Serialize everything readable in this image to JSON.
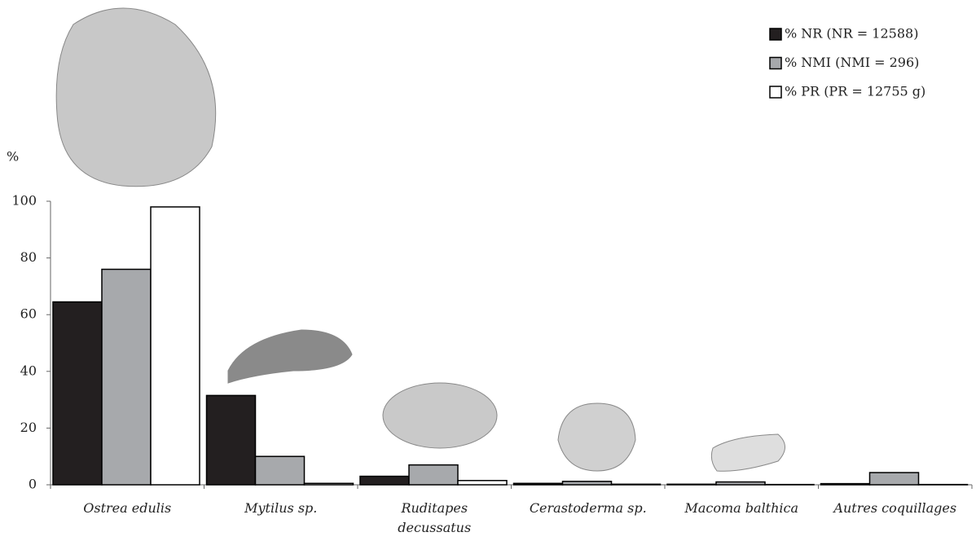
{
  "chart_data": {
    "type": "bar",
    "y_label": "%",
    "categories": [
      "Ostrea edulis",
      "Mytilus sp.",
      "Ruditapes decussatus",
      "Cerastoderma sp.",
      "Macoma balthica",
      "Autres coquillages"
    ],
    "series": [
      {
        "name": "% NR (NR = 12588)",
        "color": "#231f20",
        "values": [
          64.5,
          31.5,
          3,
          0.5,
          0.2,
          0.4
        ]
      },
      {
        "name": "% NMI (NMI = 296)",
        "color": "#a7a9ac",
        "values": [
          76,
          10,
          7,
          1.2,
          1,
          4.3
        ]
      },
      {
        "name": "% PR (PR = 12755 g)",
        "color": "#ffffff",
        "values": [
          98,
          0.5,
          1.5,
          0.2,
          0.1,
          0.1
        ]
      }
    ],
    "ylim": [
      0,
      100
    ],
    "yticks": [
      0,
      20,
      40,
      60,
      80,
      100
    ],
    "legend": "top-right"
  }
}
